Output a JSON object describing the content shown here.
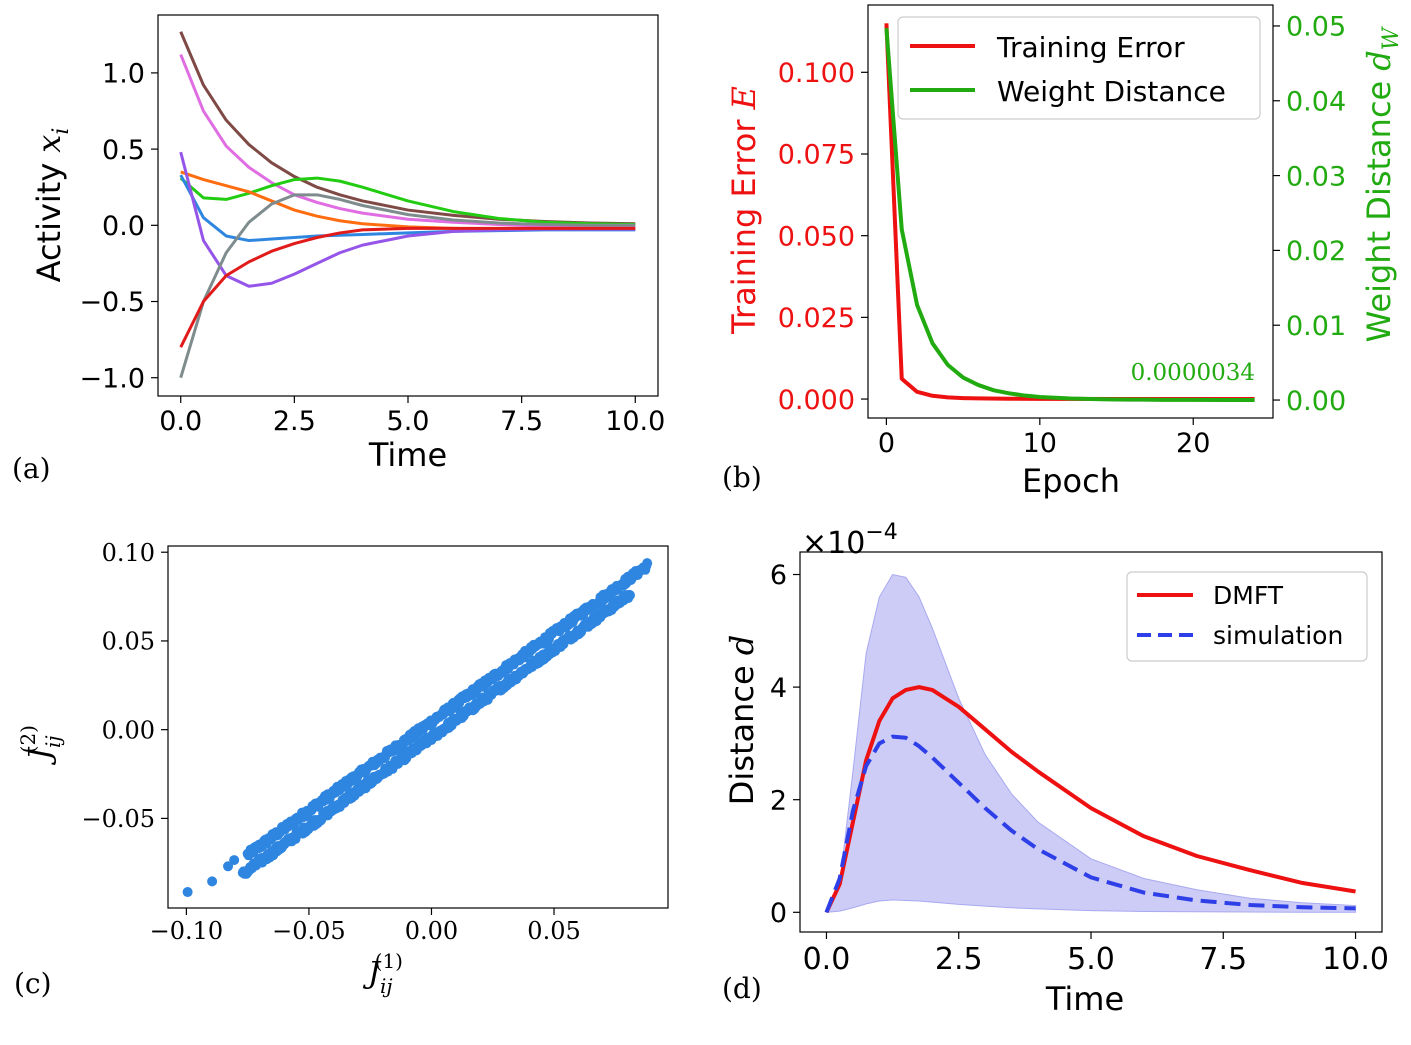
{
  "colors": {
    "red": "#ee1111",
    "green": "#22aa11",
    "blue_scatter": "#2f86e0",
    "blue_dash": "#2f3fe8",
    "band": "#c9c9f7"
  },
  "chart_data": [
    {
      "panel": "(a)",
      "type": "line",
      "xlabel": "Time",
      "ylabel": "Activity x_i",
      "ylabel_text": "Activity",
      "ylabel_var": "x",
      "ylabel_sub": "i",
      "xlim": [
        -0.5,
        10.5
      ],
      "ylim": [
        -1.12,
        1.38
      ],
      "xticks": [
        0.0,
        2.5,
        5.0,
        7.5,
        10.0
      ],
      "xtick_labels": [
        "0.0",
        "2.5",
        "5.0",
        "7.5",
        "10.0"
      ],
      "yticks": [
        -1.0,
        -0.5,
        0.0,
        0.5,
        1.0
      ],
      "ytick_labels": [
        "−1.0",
        "−0.5",
        "0.0",
        "0.5",
        "1.0"
      ],
      "x": [
        0,
        0.5,
        1,
        1.5,
        2,
        2.5,
        3,
        3.5,
        4,
        5,
        6,
        7,
        8,
        9,
        10
      ],
      "series": [
        {
          "color": "#7f4a45",
          "values": [
            1.27,
            0.92,
            0.69,
            0.53,
            0.41,
            0.32,
            0.25,
            0.2,
            0.16,
            0.1,
            0.065,
            0.04,
            0.025,
            0.015,
            0.01
          ]
        },
        {
          "color": "#e06de2",
          "values": [
            1.12,
            0.75,
            0.52,
            0.38,
            0.28,
            0.2,
            0.15,
            0.11,
            0.08,
            0.04,
            0.02,
            0.005,
            -0.005,
            -0.01,
            -0.015
          ]
        },
        {
          "color": "#22cc11",
          "values": [
            0.31,
            0.18,
            0.17,
            0.21,
            0.26,
            0.3,
            0.31,
            0.29,
            0.25,
            0.16,
            0.09,
            0.045,
            0.02,
            0.01,
            0.005
          ]
        },
        {
          "color": "#ff6d10",
          "values": [
            0.35,
            0.3,
            0.26,
            0.22,
            0.16,
            0.1,
            0.06,
            0.03,
            0.01,
            -0.01,
            -0.02,
            -0.025,
            -0.025,
            -0.025,
            -0.025
          ]
        },
        {
          "color": "#2f86e0",
          "values": [
            0.33,
            0.05,
            -0.07,
            -0.1,
            -0.09,
            -0.08,
            -0.07,
            -0.065,
            -0.06,
            -0.05,
            -0.04,
            -0.035,
            -0.03,
            -0.03,
            -0.03
          ]
        },
        {
          "color": "#9455e8",
          "values": [
            0.48,
            -0.1,
            -0.33,
            -0.4,
            -0.38,
            -0.32,
            -0.25,
            -0.18,
            -0.13,
            -0.07,
            -0.04,
            -0.03,
            -0.025,
            -0.025,
            -0.025
          ]
        },
        {
          "color": "#7f8c8d",
          "values": [
            -1.0,
            -0.5,
            -0.18,
            0.02,
            0.14,
            0.2,
            0.2,
            0.17,
            0.13,
            0.07,
            0.035,
            0.015,
            0.005,
            0.0,
            0.0
          ]
        },
        {
          "color": "#e11a1a",
          "values": [
            -0.8,
            -0.5,
            -0.33,
            -0.24,
            -0.17,
            -0.12,
            -0.08,
            -0.05,
            -0.03,
            -0.02,
            -0.02,
            -0.02,
            -0.02,
            -0.02,
            -0.02
          ]
        }
      ]
    },
    {
      "panel": "(b)",
      "type": "line",
      "xlabel": "Epoch",
      "ylabel": "Training Error E",
      "ylabel_text": "Training Error",
      "ylabel_var": "E",
      "y2label": "Weight Distance d_W",
      "y2label_text": "Weight Distance",
      "y2label_var": "d",
      "y2label_sub": "W",
      "annotation": "0.0000034",
      "xlim": [
        -1.2,
        25.2
      ],
      "ylim": [
        -0.0058,
        0.1206
      ],
      "y2lim": [
        -0.0024,
        0.0528
      ],
      "xticks": [
        0,
        10,
        20
      ],
      "xtick_labels": [
        "0",
        "10",
        "20"
      ],
      "yticks": [
        0.0,
        0.025,
        0.05,
        0.075,
        0.1
      ],
      "ytick_labels": [
        "0.000",
        "0.025",
        "0.050",
        "0.075",
        "0.100"
      ],
      "y2ticks": [
        0.0,
        0.01,
        0.02,
        0.03,
        0.04,
        0.05
      ],
      "y2tick_labels": [
        "0.00",
        "0.01",
        "0.02",
        "0.03",
        "0.04",
        "0.05"
      ],
      "legend": [
        "Training Error",
        "Weight Distance"
      ],
      "legend_position": "top-right",
      "series": [
        {
          "name": "Training Error",
          "axis": "left",
          "color": "#ee1111",
          "x": [
            0,
            1,
            2,
            3,
            4,
            5,
            6,
            8,
            10,
            15,
            20,
            24
          ],
          "values": [
            0.115,
            0.0062,
            0.0022,
            0.001,
            0.0005,
            0.0003,
            0.0002,
            0.0001,
            5e-05,
            2e-05,
            1e-05,
            1e-05
          ]
        },
        {
          "name": "Weight Distance",
          "axis": "right",
          "color": "#22aa11",
          "x": [
            0,
            1,
            2,
            3,
            4,
            5,
            6,
            7,
            8,
            9,
            10,
            11,
            12,
            13,
            14,
            15,
            16,
            18,
            20,
            22,
            24
          ],
          "values": [
            0.0497,
            0.0228,
            0.0127,
            0.0076,
            0.0047,
            0.003,
            0.002,
            0.0013,
            0.0009,
            0.0006,
            0.0004,
            0.0003,
            0.0002,
            0.00015,
            0.0001,
            8e-05,
            6e-05,
            3e-05,
            2e-05,
            1e-05,
            3.4e-06
          ]
        }
      ]
    },
    {
      "panel": "(c)",
      "type": "scatter",
      "xlabel": "J_ij^(1)",
      "ylabel": "J_ij^(2)",
      "label_var": "J",
      "label_sub": "ij",
      "xlabel_sup": "(1)",
      "ylabel_sup": "(2)",
      "xlim": [
        -0.1075,
        0.0965
      ],
      "ylim": [
        -0.1005,
        0.1035
      ],
      "xticks": [
        -0.1,
        -0.05,
        0.0,
        0.05
      ],
      "xtick_labels": [
        "−0.10",
        "−0.05",
        "0.00",
        "0.05"
      ],
      "yticks": [
        -0.05,
        0.0,
        0.05,
        0.1
      ],
      "ytick_labels": [
        "−0.05",
        "0.00",
        "0.05",
        "0.10"
      ],
      "color": "#2f86e0",
      "bands": [
        {
          "x_start": -0.075,
          "x_end": 0.088,
          "intercept": 0.0045,
          "count": 420
        },
        {
          "x_start": -0.077,
          "x_end": 0.081,
          "intercept": -0.0045,
          "count": 420
        }
      ],
      "outliers": [
        [
          -0.0995,
          -0.0915
        ],
        [
          -0.0895,
          -0.0855
        ],
        [
          -0.083,
          -0.077
        ],
        [
          -0.0805,
          -0.0735
        ]
      ]
    },
    {
      "panel": "(d)",
      "type": "line",
      "xlabel": "Time",
      "ylabel": "Distance d",
      "ylabel_text": "Distance",
      "ylabel_var": "d",
      "scale_label": "×10−4",
      "scale_base": "×10",
      "scale_exp": "−4",
      "xlim": [
        -0.5,
        10.5
      ],
      "ylim": [
        -0.35,
        6.4
      ],
      "xticks": [
        0.0,
        2.5,
        5.0,
        7.5,
        10.0
      ],
      "xtick_labels": [
        "0.0",
        "2.5",
        "5.0",
        "7.5",
        "10.0"
      ],
      "yticks": [
        0,
        2,
        4,
        6
      ],
      "ytick_labels": [
        "0",
        "2",
        "4",
        "6"
      ],
      "legend": [
        "DMFT",
        "simulation"
      ],
      "legend_position": "top-right",
      "x": [
        0,
        0.25,
        0.5,
        0.75,
        1.0,
        1.25,
        1.5,
        1.75,
        2.0,
        2.5,
        3.0,
        3.5,
        4.0,
        5.0,
        6.0,
        7.0,
        8.0,
        9.0,
        10.0
      ],
      "series": [
        {
          "name": "DMFT",
          "color": "#ee1111",
          "style": "solid",
          "values": [
            0,
            0.5,
            1.6,
            2.7,
            3.4,
            3.8,
            3.95,
            4.0,
            3.95,
            3.65,
            3.25,
            2.85,
            2.5,
            1.85,
            1.35,
            1.0,
            0.75,
            0.52,
            0.37
          ]
        },
        {
          "name": "simulation",
          "color": "#2f3fe8",
          "style": "dashed",
          "values": [
            0,
            0.6,
            1.8,
            2.6,
            3.0,
            3.12,
            3.1,
            2.95,
            2.75,
            2.3,
            1.85,
            1.45,
            1.12,
            0.62,
            0.35,
            0.21,
            0.13,
            0.09,
            0.07
          ]
        }
      ],
      "band": {
        "color": "#c9c9f7",
        "upper": [
          0,
          0.5,
          2.5,
          4.6,
          5.6,
          6.0,
          5.95,
          5.6,
          5.05,
          3.8,
          2.8,
          2.1,
          1.6,
          0.95,
          0.6,
          0.4,
          0.25,
          0.17,
          0.12
        ],
        "lower": [
          0,
          0.02,
          0.08,
          0.15,
          0.2,
          0.22,
          0.21,
          0.2,
          0.18,
          0.14,
          0.11,
          0.08,
          0.06,
          0.03,
          0.015,
          0.01,
          0.005,
          0.0,
          0.0
        ]
      }
    }
  ],
  "panel_labels": [
    "(a)",
    "(b)",
    "(c)",
    "(d)"
  ]
}
